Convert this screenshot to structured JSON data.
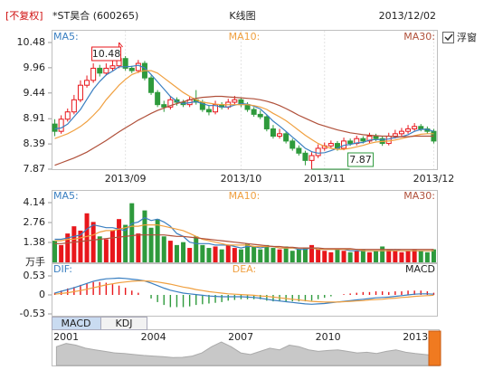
{
  "header": {
    "adjust": "[不复权]",
    "stock": "*ST昊合 (600265)",
    "title": "K线图",
    "date": "2013/12/02"
  },
  "controls": {
    "float_window": "浮窗",
    "tabs": [
      "MACD",
      "KDJ"
    ]
  },
  "chart_data": [
    {
      "type": "candlestick",
      "categories": [
        null,
        null,
        null,
        null,
        null,
        null,
        null,
        null,
        null,
        null,
        null,
        "2013/09",
        null,
        null,
        null,
        null,
        null,
        null,
        null,
        null,
        null,
        null,
        null,
        null,
        null,
        null,
        null,
        null,
        null,
        "2013/10",
        null,
        null,
        null,
        null,
        null,
        null,
        null,
        null,
        null,
        null,
        null,
        null,
        "2013/11",
        null,
        null,
        null,
        null,
        null,
        null,
        null,
        null,
        null,
        null,
        null,
        null,
        null,
        null,
        null,
        null,
        "2013/12"
      ],
      "open": [
        8.8,
        8.65,
        8.9,
        9.05,
        9.3,
        9.6,
        9.7,
        9.95,
        9.85,
        9.95,
        10.0,
        10.15,
        9.95,
        9.9,
        10.05,
        9.75,
        9.45,
        9.2,
        9.15,
        9.3,
        9.25,
        9.2,
        9.3,
        9.25,
        9.1,
        9.05,
        9.2,
        9.15,
        9.25,
        9.3,
        9.2,
        9.1,
        9.0,
        8.95,
        8.7,
        8.55,
        8.6,
        8.45,
        8.3,
        8.2,
        8.05,
        8.15,
        8.3,
        8.35,
        8.4,
        8.3,
        8.45,
        8.4,
        8.5,
        8.45,
        8.55,
        8.5,
        8.4,
        8.55,
        8.6,
        8.65,
        8.7,
        8.75,
        8.7,
        8.65
      ],
      "high": [
        8.9,
        8.98,
        9.12,
        9.4,
        9.7,
        9.8,
        10.05,
        10.02,
        10.05,
        10.1,
        10.48,
        10.2,
        10.0,
        10.12,
        10.1,
        9.8,
        9.5,
        9.28,
        9.38,
        9.35,
        9.3,
        9.36,
        9.5,
        9.3,
        9.18,
        9.28,
        9.25,
        9.32,
        9.38,
        9.35,
        9.25,
        9.15,
        9.08,
        9.0,
        8.78,
        8.7,
        8.65,
        8.5,
        8.36,
        8.25,
        8.22,
        8.38,
        8.42,
        8.46,
        8.45,
        8.52,
        8.5,
        8.56,
        8.55,
        8.62,
        8.6,
        8.55,
        8.62,
        8.68,
        8.72,
        8.78,
        8.82,
        8.8,
        8.75,
        8.7
      ],
      "low": [
        8.55,
        8.6,
        8.85,
        9.0,
        9.25,
        9.55,
        9.65,
        9.78,
        9.8,
        9.9,
        9.95,
        9.9,
        9.85,
        9.85,
        9.7,
        9.4,
        9.15,
        9.05,
        9.1,
        9.18,
        9.15,
        9.15,
        9.2,
        9.05,
        8.98,
        9.0,
        9.1,
        9.1,
        9.2,
        9.15,
        9.05,
        8.95,
        8.9,
        8.65,
        8.5,
        8.5,
        8.4,
        8.25,
        8.15,
        7.95,
        7.87,
        8.1,
        8.25,
        8.3,
        8.25,
        8.26,
        8.35,
        8.36,
        8.4,
        8.4,
        8.45,
        8.35,
        8.36,
        8.5,
        8.55,
        8.6,
        8.66,
        8.65,
        8.6,
        8.4
      ],
      "close": [
        8.65,
        8.9,
        9.05,
        9.3,
        9.6,
        9.7,
        9.95,
        9.85,
        9.95,
        10.0,
        10.15,
        9.95,
        9.9,
        10.05,
        9.75,
        9.45,
        9.2,
        9.15,
        9.3,
        9.25,
        9.2,
        9.3,
        9.25,
        9.1,
        9.05,
        9.2,
        9.15,
        9.25,
        9.3,
        9.2,
        9.1,
        9.0,
        8.95,
        8.7,
        8.55,
        8.6,
        8.45,
        8.3,
        8.2,
        8.05,
        8.15,
        8.3,
        8.35,
        8.4,
        8.3,
        8.45,
        8.4,
        8.5,
        8.45,
        8.55,
        8.5,
        8.4,
        8.55,
        8.6,
        8.65,
        8.7,
        8.75,
        8.7,
        8.65,
        8.45
      ],
      "up_color": "#e8161b",
      "down_color": "#2e9a3c",
      "ylim": [
        7.87,
        10.48
      ],
      "yticks": [
        10.48,
        9.96,
        9.44,
        8.91,
        8.39,
        7.87
      ],
      "series": [
        {
          "name": "MA5:",
          "color": "#3a7fc1",
          "values": [
            8.7,
            8.72,
            8.8,
            8.95,
            9.1,
            9.31,
            9.52,
            9.68,
            9.81,
            9.89,
            9.98,
            9.98,
            9.99,
            10.01,
            9.96,
            9.82,
            9.67,
            9.52,
            9.37,
            9.27,
            9.22,
            9.24,
            9.26,
            9.22,
            9.18,
            9.18,
            9.15,
            9.15,
            9.19,
            9.22,
            9.21,
            9.17,
            9.11,
            8.99,
            8.86,
            8.76,
            8.65,
            8.53,
            8.42,
            8.3,
            8.23,
            8.2,
            8.21,
            8.25,
            8.3,
            8.36,
            8.38,
            8.41,
            8.42,
            8.47,
            8.48,
            8.48,
            8.49,
            8.52,
            8.54,
            8.58,
            8.65,
            8.69,
            8.69,
            8.65
          ]
        },
        {
          "name": "MA10:",
          "color": "#f0a040",
          "values": [
            8.5,
            8.55,
            8.6,
            8.67,
            8.75,
            8.85,
            8.98,
            9.12,
            9.3,
            9.45,
            9.6,
            9.72,
            9.82,
            9.87,
            9.9,
            9.9,
            9.85,
            9.75,
            9.65,
            9.55,
            9.45,
            9.37,
            9.3,
            9.25,
            9.23,
            9.21,
            9.2,
            9.2,
            9.2,
            9.2,
            9.2,
            9.18,
            9.15,
            9.1,
            9.02,
            8.95,
            8.87,
            8.77,
            8.67,
            8.57,
            8.48,
            8.4,
            8.34,
            8.3,
            8.28,
            8.28,
            8.3,
            8.33,
            8.36,
            8.4,
            8.43,
            8.44,
            8.45,
            8.47,
            8.5,
            8.53,
            8.56,
            8.59,
            8.6,
            8.6
          ]
        },
        {
          "name": "MA30:",
          "color": "#b0503a",
          "values": [
            7.95,
            8.0,
            8.05,
            8.1,
            8.16,
            8.22,
            8.3,
            8.38,
            8.46,
            8.55,
            8.64,
            8.72,
            8.8,
            8.88,
            8.95,
            9.02,
            9.08,
            9.13,
            9.18,
            9.22,
            9.26,
            9.3,
            9.33,
            9.35,
            9.36,
            9.37,
            9.37,
            9.36,
            9.35,
            9.34,
            9.33,
            9.32,
            9.3,
            9.27,
            9.23,
            9.18,
            9.12,
            9.05,
            8.98,
            8.92,
            8.86,
            8.8,
            8.76,
            8.72,
            8.68,
            8.65,
            8.62,
            8.6,
            8.58,
            8.57,
            8.56,
            8.55,
            8.55,
            8.54,
            8.54,
            8.54,
            8.55,
            8.55,
            8.55,
            8.55
          ]
        }
      ]
    },
    {
      "type": "volume",
      "unit": "万手",
      "values": [
        1.5,
        1.2,
        2.0,
        2.5,
        2.2,
        3.4,
        2.8,
        1.8,
        1.6,
        2.2,
        3.0,
        2.6,
        4.1,
        2.0,
        3.6,
        2.4,
        3.0,
        1.8,
        1.5,
        1.2,
        1.4,
        1.0,
        1.8,
        1.2,
        1.0,
        1.1,
        0.9,
        1.2,
        1.0,
        0.9,
        1.3,
        1.1,
        0.9,
        1.2,
        1.0,
        0.9,
        1.1,
        0.8,
        0.9,
        1.0,
        1.2,
        0.9,
        0.8,
        0.7,
        0.9,
        0.8,
        0.7,
        0.8,
        0.9,
        0.7,
        0.8,
        1.1,
        0.9,
        0.8,
        0.7,
        0.8,
        0.9,
        0.8,
        0.7,
        0.9
      ],
      "ylim": [
        0,
        4.14
      ],
      "yticks": [
        4.14,
        2.76,
        1.38
      ],
      "series": [
        {
          "name": "MA5:",
          "color": "#3a7fc1",
          "values": [
            1.6,
            1.6,
            1.7,
            1.8,
            1.9,
            2.3,
            2.6,
            2.5,
            2.4,
            2.4,
            2.3,
            2.2,
            2.7,
            2.8,
            3.1,
            2.9,
            3.0,
            2.8,
            2.5,
            2.0,
            1.8,
            1.4,
            1.3,
            1.3,
            1.3,
            1.2,
            1.2,
            1.2,
            1.1,
            1.0,
            1.1,
            1.1,
            1.0,
            1.1,
            1.1,
            1.0,
            1.0,
            1.0,
            0.9,
            0.9,
            1.0,
            0.9,
            0.9,
            0.9,
            0.9,
            0.9,
            0.8,
            0.8,
            0.8,
            0.8,
            0.8,
            0.8,
            0.8,
            0.9,
            0.8,
            0.8,
            0.8,
            0.8,
            0.8,
            0.8
          ]
        },
        {
          "name": "MA10:",
          "color": "#f0a040",
          "values": [
            1.5,
            1.5,
            1.6,
            1.6,
            1.7,
            1.8,
            1.9,
            2.1,
            2.2,
            2.2,
            2.3,
            2.4,
            2.5,
            2.5,
            2.6,
            2.6,
            2.6,
            2.5,
            2.4,
            2.3,
            2.2,
            2.0,
            1.8,
            1.6,
            1.5,
            1.4,
            1.3,
            1.2,
            1.2,
            1.2,
            1.2,
            1.1,
            1.1,
            1.1,
            1.1,
            1.0,
            1.0,
            1.0,
            1.0,
            1.0,
            1.0,
            0.9,
            0.9,
            0.9,
            0.9,
            0.9,
            0.9,
            0.9,
            0.8,
            0.8,
            0.8,
            0.8,
            0.8,
            0.8,
            0.8,
            0.8,
            0.8,
            0.8,
            0.8,
            0.8
          ]
        },
        {
          "name": "MA30:",
          "color": "#b0503a",
          "values": [
            1.3,
            1.3,
            1.35,
            1.4,
            1.45,
            1.5,
            1.55,
            1.6,
            1.65,
            1.7,
            1.75,
            1.8,
            1.85,
            1.9,
            1.9,
            1.9,
            1.9,
            1.9,
            1.85,
            1.8,
            1.8,
            1.75,
            1.7,
            1.65,
            1.6,
            1.55,
            1.5,
            1.45,
            1.4,
            1.35,
            1.3,
            1.25,
            1.2,
            1.15,
            1.1,
            1.1,
            1.05,
            1.05,
            1.0,
            1.0,
            1.0,
            1.0,
            0.95,
            0.95,
            0.95,
            0.95,
            0.95,
            0.9,
            0.9,
            0.9,
            0.9,
            0.9,
            0.9,
            0.9,
            0.9,
            0.9,
            0.9,
            0.9,
            0.9,
            0.9
          ]
        }
      ]
    },
    {
      "type": "macd",
      "ylim": [
        -0.53,
        0.53
      ],
      "yticks": [
        0.53,
        0,
        -0.53
      ],
      "series": [
        {
          "name": "DIF:",
          "color": "#3a7fc1",
          "values": [
            0.05,
            0.1,
            0.15,
            0.2,
            0.26,
            0.32,
            0.38,
            0.42,
            0.45,
            0.46,
            0.47,
            0.46,
            0.44,
            0.42,
            0.39,
            0.33,
            0.26,
            0.19,
            0.13,
            0.09,
            0.05,
            0.03,
            0.01,
            -0.01,
            -0.03,
            -0.04,
            -0.05,
            -0.05,
            -0.05,
            -0.05,
            -0.06,
            -0.07,
            -0.09,
            -0.12,
            -0.15,
            -0.17,
            -0.19,
            -0.21,
            -0.23,
            -0.25,
            -0.26,
            -0.25,
            -0.24,
            -0.22,
            -0.2,
            -0.18,
            -0.16,
            -0.14,
            -0.12,
            -0.1,
            -0.08,
            -0.07,
            -0.06,
            -0.04,
            -0.02,
            0.0,
            0.02,
            0.03,
            0.03,
            0.02
          ]
        },
        {
          "name": "DEA:",
          "color": "#f0a040",
          "values": [
            0.02,
            0.04,
            0.06,
            0.09,
            0.12,
            0.16,
            0.2,
            0.24,
            0.28,
            0.31,
            0.34,
            0.36,
            0.38,
            0.39,
            0.39,
            0.38,
            0.36,
            0.33,
            0.3,
            0.26,
            0.22,
            0.19,
            0.15,
            0.12,
            0.09,
            0.07,
            0.05,
            0.03,
            0.02,
            0.01,
            0.0,
            -0.01,
            -0.03,
            -0.04,
            -0.06,
            -0.08,
            -0.1,
            -0.12,
            -0.14,
            -0.16,
            -0.18,
            -0.19,
            -0.2,
            -0.2,
            -0.2,
            -0.19,
            -0.18,
            -0.17,
            -0.16,
            -0.14,
            -0.13,
            -0.12,
            -0.1,
            -0.09,
            -0.07,
            -0.06,
            -0.04,
            -0.03,
            -0.02,
            -0.01
          ]
        }
      ],
      "bars": {
        "name": "MACD",
        "values": [
          0.06,
          0.12,
          0.18,
          0.22,
          0.28,
          0.32,
          0.36,
          0.36,
          0.34,
          0.3,
          0.26,
          0.2,
          0.12,
          0.06,
          0,
          -0.1,
          -0.2,
          -0.28,
          -0.34,
          -0.34,
          -0.34,
          -0.32,
          -0.28,
          -0.26,
          -0.24,
          -0.22,
          -0.2,
          -0.16,
          -0.14,
          -0.12,
          -0.12,
          -0.12,
          -0.12,
          -0.16,
          -0.18,
          -0.18,
          -0.18,
          -0.18,
          -0.18,
          -0.18,
          -0.16,
          -0.12,
          -0.08,
          -0.04,
          0,
          0.02,
          0.04,
          0.06,
          0.08,
          0.08,
          0.1,
          0.1,
          0.08,
          0.1,
          0.1,
          0.12,
          0.12,
          0.12,
          0.1,
          0.06
        ]
      }
    },
    {
      "type": "area",
      "color": "#c8c8c8",
      "categories": [
        null,
        "2001",
        null,
        null,
        null,
        null,
        null,
        null,
        null,
        null,
        "2004",
        null,
        null,
        null,
        null,
        null,
        null,
        null,
        null,
        "2007",
        null,
        null,
        null,
        null,
        null,
        null,
        null,
        null,
        "2010",
        null,
        null,
        null,
        null,
        null,
        null,
        null,
        null,
        "2013",
        null,
        null
      ],
      "values": [
        6,
        7,
        6.5,
        5.5,
        5,
        4.5,
        4,
        3.8,
        3.5,
        3.2,
        3,
        2.8,
        2.5,
        2.6,
        3,
        4,
        6,
        7.5,
        6,
        4,
        3.5,
        4.5,
        5.5,
        5,
        6.5,
        6,
        5,
        4.5,
        4.8,
        5,
        4.5,
        4,
        4.2,
        3.8,
        4.5,
        5,
        4.2,
        3.8,
        3.5,
        3.2
      ]
    }
  ]
}
